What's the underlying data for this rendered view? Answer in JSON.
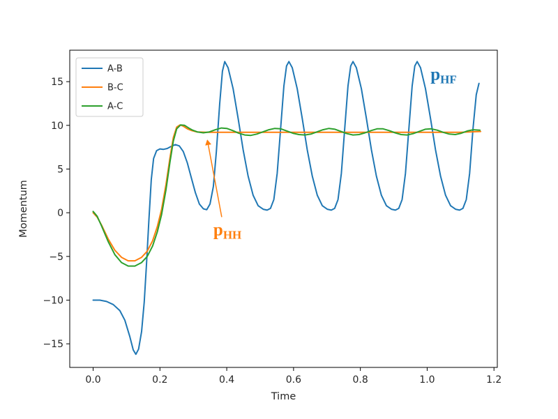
{
  "figure": {
    "background": "#ffffff"
  },
  "chart_data": {
    "type": "line",
    "title": "",
    "xlabel": "Time",
    "ylabel": "Momentum",
    "grid": false,
    "xlim": [
      -0.07,
      1.21
    ],
    "ylim": [
      -17.7,
      18.6
    ],
    "x_ticks": [
      0.0,
      0.2,
      0.4,
      0.6,
      0.8,
      1.0,
      1.2
    ],
    "x_tick_labels": [
      "0.0",
      "0.2",
      "0.4",
      "0.6",
      "0.8",
      "1.0",
      "1.2"
    ],
    "y_ticks": [
      -15,
      -10,
      -5,
      0,
      5,
      10,
      15
    ],
    "y_tick_labels": [
      "−15",
      "−10",
      "−5",
      "0",
      "5",
      "10",
      "15"
    ],
    "legend": {
      "position": "upper left",
      "entries": [
        {
          "label": "A-B",
          "color": "#1f77b4"
        },
        {
          "label": "B-C",
          "color": "#ff7f0e"
        },
        {
          "label": "A-C",
          "color": "#2ca02c"
        }
      ]
    },
    "annotations": [
      {
        "id": "p_HF",
        "text_main": "p",
        "text_sub": "HF",
        "color": "#1f77b4",
        "x": 1.01,
        "y": 15.2
      },
      {
        "id": "p_HH",
        "text_main": "p",
        "text_sub": "HH",
        "color": "#ff7f0e",
        "x": 0.36,
        "y": -2.6,
        "arrow": {
          "from_x": 0.385,
          "from_y": -0.5,
          "to_x": 0.342,
          "to_y": 8.3
        }
      }
    ],
    "series": [
      {
        "name": "A-B",
        "color": "#1f77b4",
        "points": [
          [
            0.0,
            -10.0
          ],
          [
            0.02,
            -10.0
          ],
          [
            0.04,
            -10.15
          ],
          [
            0.06,
            -10.5
          ],
          [
            0.08,
            -11.2
          ],
          [
            0.095,
            -12.3
          ],
          [
            0.11,
            -14.2
          ],
          [
            0.12,
            -15.7
          ],
          [
            0.128,
            -16.2
          ],
          [
            0.136,
            -15.6
          ],
          [
            0.145,
            -13.6
          ],
          [
            0.153,
            -10.2
          ],
          [
            0.16,
            -5.8
          ],
          [
            0.167,
            -0.8
          ],
          [
            0.174,
            3.8
          ],
          [
            0.181,
            6.2
          ],
          [
            0.19,
            7.1
          ],
          [
            0.2,
            7.3
          ],
          [
            0.21,
            7.25
          ],
          [
            0.222,
            7.35
          ],
          [
            0.234,
            7.6
          ],
          [
            0.246,
            7.8
          ],
          [
            0.258,
            7.65
          ],
          [
            0.27,
            7.0
          ],
          [
            0.282,
            5.7
          ],
          [
            0.294,
            4.0
          ],
          [
            0.306,
            2.3
          ],
          [
            0.318,
            1.0
          ],
          [
            0.33,
            0.45
          ],
          [
            0.34,
            0.35
          ],
          [
            0.35,
            1.0
          ],
          [
            0.36,
            3.0
          ],
          [
            0.369,
            7.0
          ],
          [
            0.379,
            12.5
          ],
          [
            0.387,
            16.2
          ],
          [
            0.394,
            17.3
          ],
          [
            0.404,
            16.6
          ],
          [
            0.419,
            14.2
          ],
          [
            0.434,
            10.8
          ],
          [
            0.449,
            7.2
          ],
          [
            0.464,
            4.2
          ],
          [
            0.479,
            2.0
          ],
          [
            0.494,
            0.8
          ],
          [
            0.509,
            0.4
          ],
          [
            0.521,
            0.3
          ],
          [
            0.531,
            0.5
          ],
          [
            0.541,
            1.5
          ],
          [
            0.551,
            4.5
          ],
          [
            0.561,
            9.5
          ],
          [
            0.571,
            14.5
          ],
          [
            0.579,
            16.8
          ],
          [
            0.586,
            17.3
          ],
          [
            0.596,
            16.6
          ],
          [
            0.611,
            14.2
          ],
          [
            0.626,
            10.8
          ],
          [
            0.641,
            7.2
          ],
          [
            0.656,
            4.2
          ],
          [
            0.671,
            2.0
          ],
          [
            0.686,
            0.8
          ],
          [
            0.701,
            0.4
          ],
          [
            0.713,
            0.3
          ],
          [
            0.723,
            0.5
          ],
          [
            0.733,
            1.5
          ],
          [
            0.743,
            4.5
          ],
          [
            0.753,
            9.5
          ],
          [
            0.763,
            14.5
          ],
          [
            0.771,
            16.8
          ],
          [
            0.778,
            17.3
          ],
          [
            0.788,
            16.6
          ],
          [
            0.803,
            14.2
          ],
          [
            0.818,
            10.8
          ],
          [
            0.833,
            7.2
          ],
          [
            0.848,
            4.2
          ],
          [
            0.863,
            2.0
          ],
          [
            0.878,
            0.8
          ],
          [
            0.893,
            0.4
          ],
          [
            0.905,
            0.3
          ],
          [
            0.915,
            0.5
          ],
          [
            0.925,
            1.5
          ],
          [
            0.935,
            4.5
          ],
          [
            0.945,
            9.5
          ],
          [
            0.955,
            14.5
          ],
          [
            0.963,
            16.8
          ],
          [
            0.97,
            17.3
          ],
          [
            0.98,
            16.6
          ],
          [
            0.995,
            14.2
          ],
          [
            1.01,
            10.8
          ],
          [
            1.025,
            7.2
          ],
          [
            1.04,
            4.2
          ],
          [
            1.055,
            2.0
          ],
          [
            1.07,
            0.8
          ],
          [
            1.085,
            0.4
          ],
          [
            1.097,
            0.3
          ],
          [
            1.107,
            0.5
          ],
          [
            1.117,
            1.5
          ],
          [
            1.127,
            4.5
          ],
          [
            1.137,
            9.5
          ],
          [
            1.147,
            13.5
          ],
          [
            1.155,
            14.8
          ]
        ]
      },
      {
        "name": "B-C",
        "color": "#ff7f0e",
        "points": [
          [
            0.0,
            0.0
          ],
          [
            0.012,
            -0.5
          ],
          [
            0.025,
            -1.4
          ],
          [
            0.045,
            -3.0
          ],
          [
            0.065,
            -4.3
          ],
          [
            0.085,
            -5.1
          ],
          [
            0.105,
            -5.5
          ],
          [
            0.125,
            -5.5
          ],
          [
            0.145,
            -5.1
          ],
          [
            0.162,
            -4.4
          ],
          [
            0.178,
            -3.2
          ],
          [
            0.192,
            -1.6
          ],
          [
            0.205,
            0.4
          ],
          [
            0.218,
            3.2
          ],
          [
            0.23,
            6.3
          ],
          [
            0.24,
            8.6
          ],
          [
            0.25,
            9.8
          ],
          [
            0.26,
            10.05
          ],
          [
            0.27,
            9.9
          ],
          [
            0.282,
            9.6
          ],
          [
            0.295,
            9.4
          ],
          [
            0.31,
            9.25
          ],
          [
            0.34,
            9.2
          ],
          [
            0.4,
            9.2
          ],
          [
            0.5,
            9.2
          ],
          [
            0.6,
            9.2
          ],
          [
            0.7,
            9.2
          ],
          [
            0.8,
            9.2
          ],
          [
            0.9,
            9.2
          ],
          [
            1.0,
            9.2
          ],
          [
            1.1,
            9.2
          ],
          [
            1.16,
            9.3
          ]
        ]
      },
      {
        "name": "A-C",
        "color": "#2ca02c",
        "points": [
          [
            0.0,
            0.15
          ],
          [
            0.012,
            -0.4
          ],
          [
            0.025,
            -1.5
          ],
          [
            0.045,
            -3.3
          ],
          [
            0.065,
            -4.8
          ],
          [
            0.085,
            -5.7
          ],
          [
            0.105,
            -6.1
          ],
          [
            0.125,
            -6.1
          ],
          [
            0.145,
            -5.7
          ],
          [
            0.162,
            -5.0
          ],
          [
            0.178,
            -3.8
          ],
          [
            0.192,
            -2.2
          ],
          [
            0.205,
            -0.2
          ],
          [
            0.218,
            2.6
          ],
          [
            0.23,
            5.8
          ],
          [
            0.24,
            8.2
          ],
          [
            0.25,
            9.6
          ],
          [
            0.262,
            10.05
          ],
          [
            0.274,
            10.0
          ],
          [
            0.286,
            9.7
          ],
          [
            0.298,
            9.45
          ],
          [
            0.312,
            9.25
          ],
          [
            0.33,
            9.15
          ],
          [
            0.348,
            9.25
          ],
          [
            0.366,
            9.5
          ],
          [
            0.384,
            9.7
          ],
          [
            0.4,
            9.65
          ],
          [
            0.418,
            9.4
          ],
          [
            0.436,
            9.1
          ],
          [
            0.454,
            8.9
          ],
          [
            0.472,
            8.85
          ],
          [
            0.49,
            9.0
          ],
          [
            0.508,
            9.25
          ],
          [
            0.526,
            9.5
          ],
          [
            0.544,
            9.65
          ],
          [
            0.562,
            9.6
          ],
          [
            0.58,
            9.35
          ],
          [
            0.598,
            9.1
          ],
          [
            0.616,
            8.95
          ],
          [
            0.634,
            8.9
          ],
          [
            0.652,
            9.0
          ],
          [
            0.67,
            9.25
          ],
          [
            0.688,
            9.5
          ],
          [
            0.706,
            9.65
          ],
          [
            0.724,
            9.55
          ],
          [
            0.742,
            9.3
          ],
          [
            0.76,
            9.05
          ],
          [
            0.778,
            8.9
          ],
          [
            0.796,
            8.95
          ],
          [
            0.814,
            9.15
          ],
          [
            0.832,
            9.4
          ],
          [
            0.85,
            9.6
          ],
          [
            0.868,
            9.6
          ],
          [
            0.886,
            9.4
          ],
          [
            0.904,
            9.15
          ],
          [
            0.922,
            8.95
          ],
          [
            0.94,
            8.9
          ],
          [
            0.958,
            9.05
          ],
          [
            0.976,
            9.3
          ],
          [
            0.994,
            9.55
          ],
          [
            1.012,
            9.6
          ],
          [
            1.03,
            9.45
          ],
          [
            1.048,
            9.2
          ],
          [
            1.066,
            9.0
          ],
          [
            1.084,
            8.95
          ],
          [
            1.102,
            9.1
          ],
          [
            1.12,
            9.35
          ],
          [
            1.138,
            9.5
          ],
          [
            1.158,
            9.45
          ]
        ]
      }
    ]
  }
}
